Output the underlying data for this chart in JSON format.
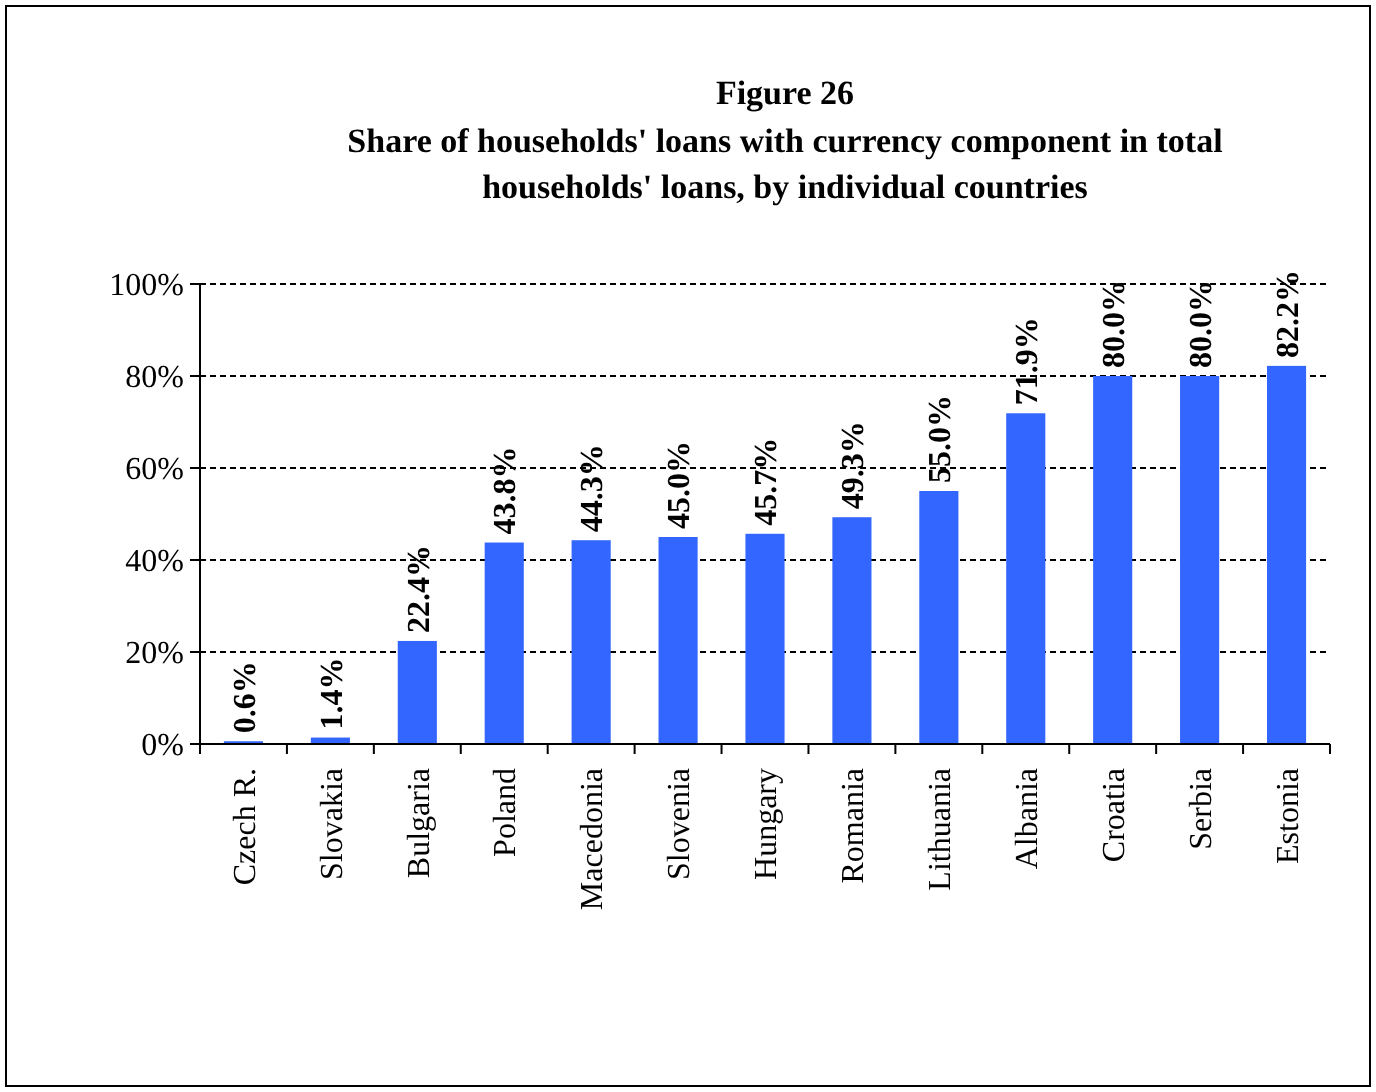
{
  "chart_data": {
    "type": "bar",
    "title": "Figure 26",
    "subtitle": "Share of households' loans with currency component in total households' loans, by individual countries",
    "categories": [
      "Czech R.",
      "Slovakia",
      "Bulgaria",
      "Poland",
      "Macedonia",
      "Slovenia",
      "Hungary",
      "Romania",
      "Lithuania",
      "Albania",
      "Croatia",
      "Serbia",
      "Estonia"
    ],
    "values": [
      0.6,
      1.4,
      22.4,
      43.8,
      44.3,
      45.0,
      45.7,
      49.3,
      55.0,
      71.9,
      80.0,
      80.0,
      82.2
    ],
    "value_labels": [
      "0.6%",
      "1.4%",
      "22.4%",
      "43.8%",
      "44.3%",
      "45.0%",
      "45.7%",
      "49.3%",
      "55.0%",
      "71.9%",
      "80.0%",
      "80.0%",
      "82.2%"
    ],
    "color": "#3366ff",
    "ylim": [
      0,
      100
    ],
    "yticks": [
      {
        "value": 0,
        "label": "0%"
      },
      {
        "value": 20,
        "label": "20%"
      },
      {
        "value": 40,
        "label": "40%"
      },
      {
        "value": 60,
        "label": "60%"
      },
      {
        "value": 80,
        "label": "80%"
      },
      {
        "value": 100,
        "label": "100%"
      }
    ],
    "grid": "y"
  }
}
